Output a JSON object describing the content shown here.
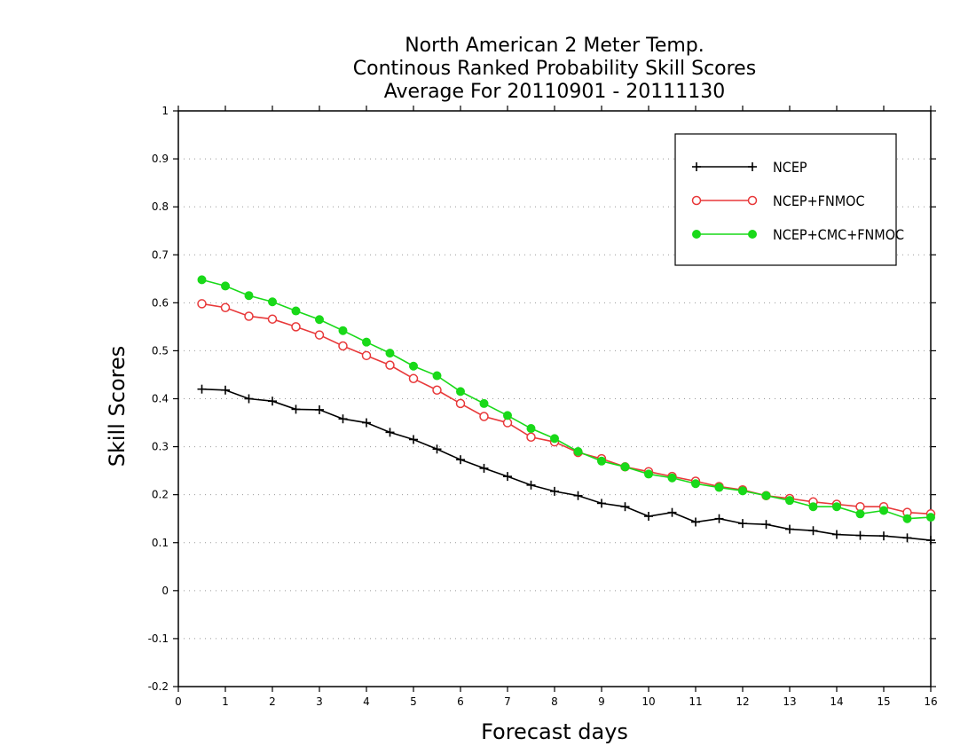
{
  "chart_data": {
    "type": "line",
    "title": [
      "North American 2 Meter Temp.",
      "Continous Ranked Probability Skill Scores",
      "Average For 20110901 - 20111130"
    ],
    "xlabel": "Forecast days",
    "ylabel": "Skill Scores",
    "xlim": [
      0,
      16
    ],
    "ylim": [
      -0.2,
      1
    ],
    "x_ticks": [
      0,
      1,
      2,
      3,
      4,
      5,
      6,
      7,
      8,
      9,
      10,
      11,
      12,
      13,
      14,
      15,
      16
    ],
    "x_tick_labels": [
      "0",
      "1",
      "2",
      "3",
      "4",
      "5",
      "6",
      "7",
      "8",
      "9",
      "10",
      "11",
      "12",
      "13",
      "14",
      "15",
      "16"
    ],
    "y_ticks": [
      -0.2,
      -0.1,
      0,
      0.1,
      0.2,
      0.3,
      0.4,
      0.5,
      0.6,
      0.7,
      0.8,
      0.9,
      1
    ],
    "y_tick_labels": [
      "-0.2",
      "-0.1",
      "0",
      "0.1",
      "0.2",
      "0.3",
      "0.4",
      "0.5",
      "0.6",
      "0.7",
      "0.8",
      "0.9",
      "1"
    ],
    "grid": "horizontal dotted",
    "legend_position": "top-right",
    "x": [
      0.5,
      1,
      1.5,
      2,
      2.5,
      3,
      3.5,
      4,
      4.5,
      5,
      5.5,
      6,
      6.5,
      7,
      7.5,
      8,
      8.5,
      9,
      9.5,
      10,
      10.5,
      11,
      11.5,
      12,
      12.5,
      13,
      13.5,
      14,
      14.5,
      15,
      15.5,
      16
    ],
    "series": [
      {
        "name": "NCEP",
        "color": "#000000",
        "marker": "plus",
        "values": [
          0.42,
          0.418,
          0.4,
          0.395,
          0.378,
          0.377,
          0.358,
          0.35,
          0.33,
          0.315,
          0.295,
          0.273,
          0.255,
          0.238,
          0.22,
          0.207,
          0.198,
          0.182,
          0.175,
          0.155,
          0.163,
          0.143,
          0.15,
          0.14,
          0.138,
          0.128,
          0.125,
          0.117,
          0.115,
          0.114,
          0.11,
          0.105
        ]
      },
      {
        "name": "NCEP+FNMOC",
        "color": "#e8393a",
        "marker": "open-circle",
        "values": [
          0.598,
          0.59,
          0.572,
          0.566,
          0.55,
          0.533,
          0.51,
          0.49,
          0.47,
          0.442,
          0.418,
          0.39,
          0.363,
          0.35,
          0.32,
          0.31,
          0.288,
          0.275,
          0.258,
          0.248,
          0.238,
          0.228,
          0.217,
          0.21,
          0.198,
          0.192,
          0.185,
          0.18,
          0.175,
          0.175,
          0.163,
          0.16
        ]
      },
      {
        "name": "NCEP+CMC+FNMOC",
        "color": "#19d919",
        "marker": "filled-circle",
        "values": [
          0.648,
          0.635,
          0.615,
          0.602,
          0.583,
          0.565,
          0.542,
          0.518,
          0.495,
          0.468,
          0.448,
          0.415,
          0.39,
          0.365,
          0.338,
          0.317,
          0.29,
          0.27,
          0.258,
          0.243,
          0.235,
          0.223,
          0.215,
          0.208,
          0.198,
          0.188,
          0.175,
          0.175,
          0.16,
          0.167,
          0.15,
          0.153
        ]
      }
    ]
  }
}
